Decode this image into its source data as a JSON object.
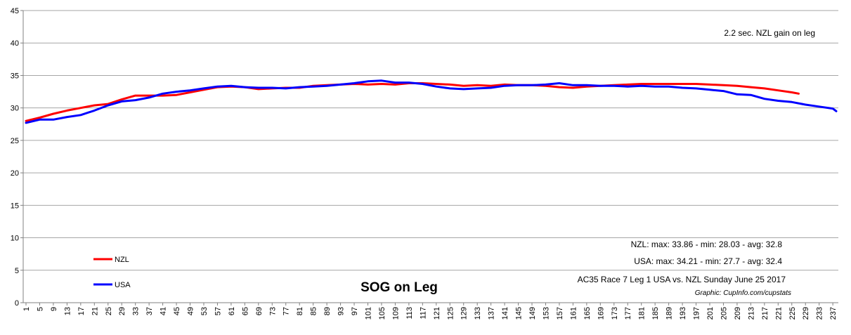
{
  "chart_data": {
    "type": "line",
    "title": "SOG on Leg",
    "xlabel": "",
    "ylabel": "",
    "xlim": [
      1,
      238
    ],
    "ylim": [
      0,
      45
    ],
    "y_ticks": [
      0,
      5,
      10,
      15,
      20,
      25,
      30,
      35,
      40,
      45
    ],
    "x_tick_step": 4,
    "grid": "horizontal",
    "legend_position": "bottom-left",
    "series": [
      {
        "name": "NZL",
        "color": "#ff0000",
        "points": [
          [
            1,
            28.0
          ],
          [
            5,
            28.5
          ],
          [
            9,
            29.1
          ],
          [
            13,
            29.6
          ],
          [
            17,
            30.0
          ],
          [
            21,
            30.4
          ],
          [
            25,
            30.6
          ],
          [
            29,
            31.3
          ],
          [
            33,
            31.9
          ],
          [
            37,
            31.9
          ],
          [
            41,
            31.9
          ],
          [
            45,
            32.0
          ],
          [
            49,
            32.4
          ],
          [
            53,
            32.8
          ],
          [
            57,
            33.2
          ],
          [
            61,
            33.3
          ],
          [
            65,
            33.2
          ],
          [
            69,
            32.9
          ],
          [
            73,
            33.0
          ],
          [
            77,
            33.1
          ],
          [
            81,
            33.1
          ],
          [
            85,
            33.4
          ],
          [
            89,
            33.5
          ],
          [
            93,
            33.6
          ],
          [
            97,
            33.7
          ],
          [
            101,
            33.6
          ],
          [
            105,
            33.7
          ],
          [
            109,
            33.6
          ],
          [
            113,
            33.8
          ],
          [
            117,
            33.8
          ],
          [
            121,
            33.7
          ],
          [
            125,
            33.6
          ],
          [
            129,
            33.4
          ],
          [
            133,
            33.5
          ],
          [
            137,
            33.4
          ],
          [
            141,
            33.6
          ],
          [
            145,
            33.5
          ],
          [
            149,
            33.5
          ],
          [
            153,
            33.4
          ],
          [
            157,
            33.2
          ],
          [
            161,
            33.1
          ],
          [
            165,
            33.3
          ],
          [
            169,
            33.4
          ],
          [
            173,
            33.5
          ],
          [
            177,
            33.6
          ],
          [
            181,
            33.7
          ],
          [
            185,
            33.7
          ],
          [
            189,
            33.7
          ],
          [
            193,
            33.7
          ],
          [
            197,
            33.7
          ],
          [
            201,
            33.6
          ],
          [
            205,
            33.5
          ],
          [
            209,
            33.4
          ],
          [
            213,
            33.2
          ],
          [
            217,
            33.0
          ],
          [
            221,
            32.7
          ],
          [
            225,
            32.4
          ],
          [
            227,
            32.2
          ]
        ],
        "max_label": "NZL: max: 33.86  - min: 28.03  - avg: 32.8"
      },
      {
        "name": "USA",
        "color": "#0000ff",
        "points": [
          [
            1,
            27.7
          ],
          [
            5,
            28.2
          ],
          [
            9,
            28.2
          ],
          [
            13,
            28.6
          ],
          [
            17,
            28.9
          ],
          [
            21,
            29.6
          ],
          [
            25,
            30.4
          ],
          [
            29,
            31.0
          ],
          [
            33,
            31.2
          ],
          [
            37,
            31.6
          ],
          [
            41,
            32.2
          ],
          [
            45,
            32.5
          ],
          [
            49,
            32.7
          ],
          [
            53,
            33.0
          ],
          [
            57,
            33.3
          ],
          [
            61,
            33.4
          ],
          [
            65,
            33.2
          ],
          [
            69,
            33.1
          ],
          [
            73,
            33.1
          ],
          [
            77,
            33.0
          ],
          [
            81,
            33.2
          ],
          [
            85,
            33.3
          ],
          [
            89,
            33.4
          ],
          [
            93,
            33.6
          ],
          [
            97,
            33.8
          ],
          [
            101,
            34.1
          ],
          [
            105,
            34.2
          ],
          [
            109,
            33.9
          ],
          [
            113,
            33.9
          ],
          [
            117,
            33.7
          ],
          [
            121,
            33.3
          ],
          [
            125,
            33.0
          ],
          [
            129,
            32.9
          ],
          [
            133,
            33.0
          ],
          [
            137,
            33.1
          ],
          [
            141,
            33.4
          ],
          [
            145,
            33.5
          ],
          [
            149,
            33.5
          ],
          [
            153,
            33.6
          ],
          [
            157,
            33.8
          ],
          [
            161,
            33.5
          ],
          [
            165,
            33.5
          ],
          [
            169,
            33.4
          ],
          [
            173,
            33.4
          ],
          [
            177,
            33.3
          ],
          [
            181,
            33.4
          ],
          [
            185,
            33.3
          ],
          [
            189,
            33.3
          ],
          [
            193,
            33.1
          ],
          [
            197,
            33.0
          ],
          [
            201,
            32.8
          ],
          [
            205,
            32.6
          ],
          [
            209,
            32.1
          ],
          [
            213,
            32.0
          ],
          [
            217,
            31.4
          ],
          [
            221,
            31.1
          ],
          [
            225,
            30.9
          ],
          [
            229,
            30.5
          ],
          [
            233,
            30.2
          ],
          [
            237,
            29.9
          ],
          [
            238,
            29.5
          ]
        ],
        "max_label": "USA: max: 34.21  - min: 27.7  - avg: 32.4"
      }
    ],
    "annotations": {
      "gain": "2.2 sec. NZL gain on leg",
      "stats_nzl": "NZL: max: 33.86  - min: 28.03  - avg: 32.8",
      "stats_usa": "USA: max: 34.21  - min: 27.7  - avg: 32.4",
      "race": "AC35  Race 7 Leg 1 USA vs. NZL Sunday June 25 2017",
      "credit": "Graphic: CupInfo.com/cupstats"
    }
  }
}
